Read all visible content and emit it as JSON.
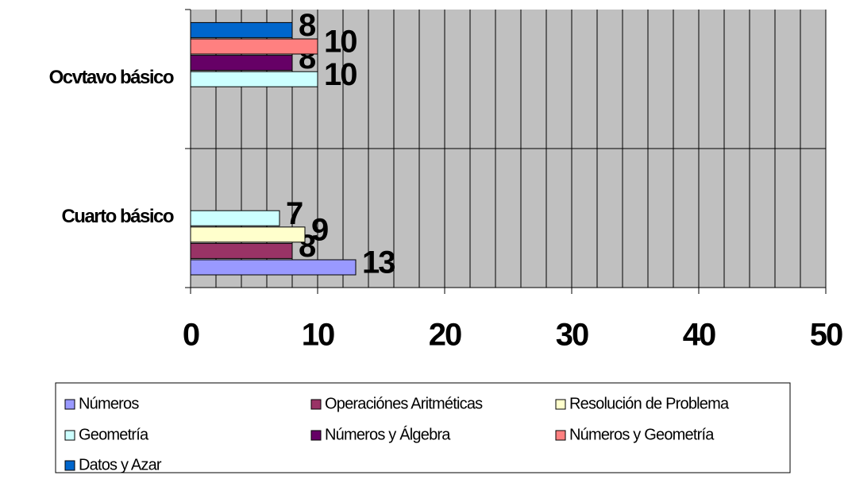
{
  "chart_data": {
    "type": "hbar",
    "categories": [
      "Cuarto básico",
      "Ocvtavo básico"
    ],
    "series": [
      {
        "name": "Números",
        "color": "#9999ff",
        "values": [
          13,
          null
        ]
      },
      {
        "name": "Operaciónes Aritméticas",
        "color": "#993366",
        "values": [
          8,
          null
        ]
      },
      {
        "name": "Resolución de Problema",
        "color": "#ffffcc",
        "values": [
          9,
          null
        ]
      },
      {
        "name": "Geometría",
        "color": "#ccffff",
        "values": [
          7,
          10
        ]
      },
      {
        "name": "Números y Álgebra",
        "color": "#660066",
        "values": [
          null,
          8
        ]
      },
      {
        "name": "Números y Geometría",
        "color": "#ff8080",
        "values": [
          null,
          10
        ]
      },
      {
        "name": "Datos y Azar",
        "color": "#0066cc",
        "values": [
          null,
          8
        ]
      }
    ],
    "xlim": [
      0,
      50
    ],
    "xticks": [
      0,
      10,
      20,
      30,
      40,
      50
    ],
    "xgrid": [
      0,
      2,
      4,
      6,
      8,
      10,
      12,
      14,
      16,
      18,
      20,
      22,
      24,
      26,
      28,
      30,
      32,
      34,
      36,
      38,
      40,
      42,
      44,
      46,
      48,
      50
    ],
    "grid": true,
    "legend": "bottom",
    "plot_color": "#c0c0c0"
  }
}
